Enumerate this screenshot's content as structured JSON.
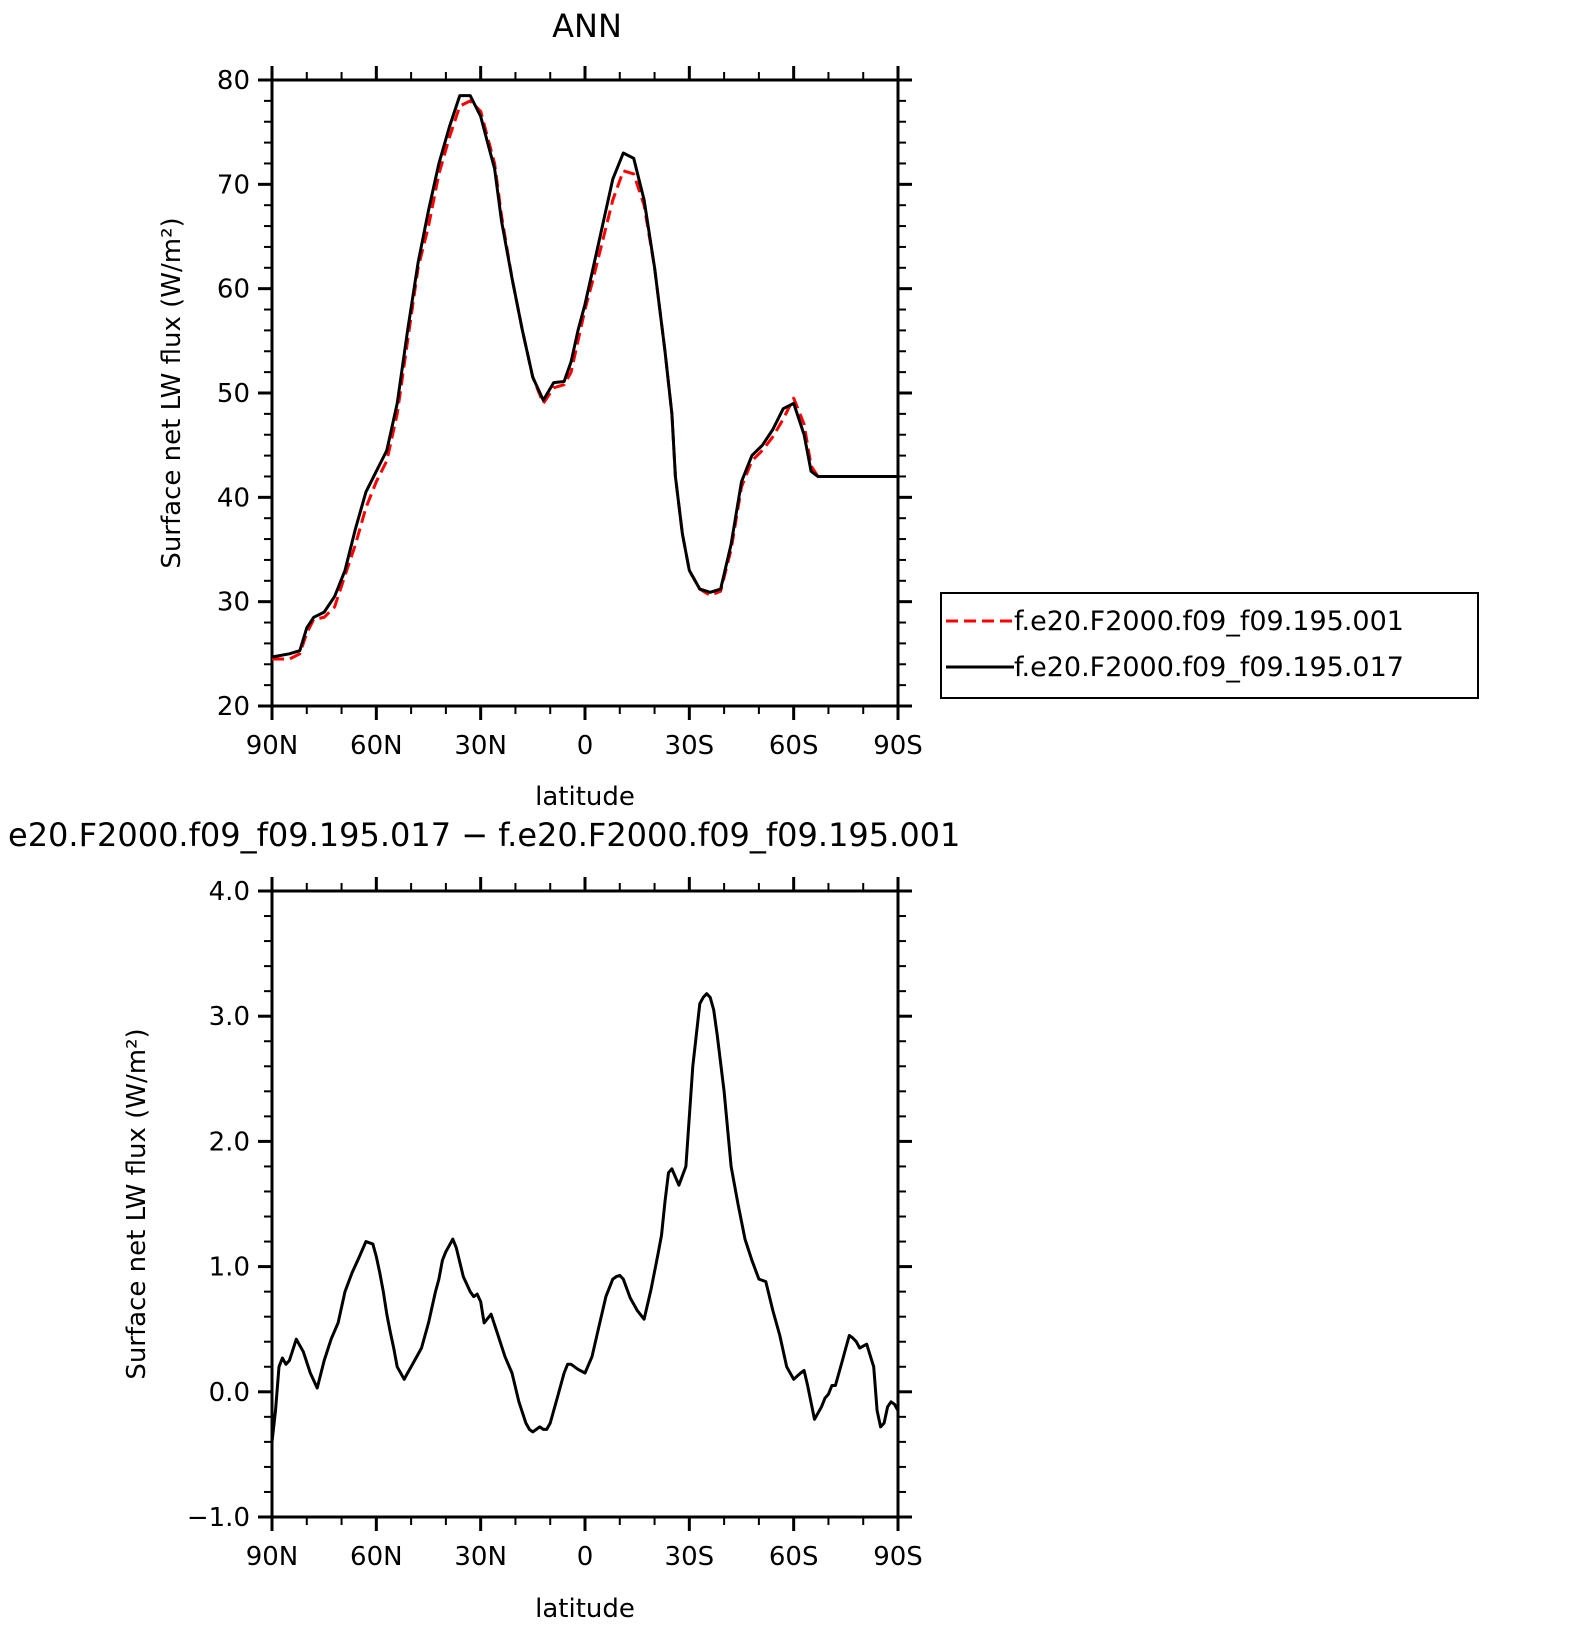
{
  "chart_data": [
    {
      "type": "line",
      "title": "ANN",
      "xlabel": "latitude",
      "ylabel": "Surface net LW flux (W/m²)",
      "xlim": [
        90,
        -90
      ],
      "ylim": [
        20,
        80
      ],
      "x_ticks": [
        90,
        60,
        30,
        0,
        -30,
        -60,
        -90
      ],
      "x_tick_labels": [
        "90N",
        "60N",
        "30N",
        "0",
        "30S",
        "60S",
        "90S"
      ],
      "y_ticks": [
        20,
        30,
        40,
        50,
        60,
        70,
        80
      ],
      "y_tick_labels": [
        "20",
        "30",
        "40",
        "50",
        "60",
        "70",
        "80"
      ],
      "legend_position": "right",
      "series": [
        {
          "name": "f.e20.F2000.f09_f09.195.001",
          "color": "#ff0000",
          "dash": "dashed",
          "x": [
            90,
            85,
            82,
            80,
            78,
            75,
            72,
            69,
            66,
            63,
            60,
            57,
            54,
            51,
            48,
            45,
            42,
            39,
            36,
            33,
            30,
            28,
            26,
            24,
            21,
            18,
            15,
            12,
            9,
            6,
            4,
            2,
            0,
            -2,
            -5,
            -8,
            -11,
            -14,
            -17,
            -20,
            -23,
            -25,
            -26,
            -28,
            -30,
            -33,
            -36,
            -39,
            -42,
            -45,
            -48,
            -51,
            -54,
            -57,
            -60,
            -63,
            -65,
            -67,
            -69,
            -71,
            -73,
            -75,
            -77,
            -79,
            -81,
            -83,
            -85,
            -87,
            -89,
            -90
          ],
          "y": [
            24.5,
            24.5,
            25,
            27,
            28.3,
            28.5,
            29.5,
            32.5,
            35.5,
            39,
            41.5,
            43.5,
            48,
            55,
            62,
            66,
            71,
            74.5,
            77.5,
            78,
            77,
            74.5,
            72,
            67,
            61,
            56,
            51.5,
            49,
            50.5,
            50.8,
            52,
            55,
            58,
            60.5,
            64.5,
            68.5,
            71.3,
            71,
            68,
            62,
            54,
            48,
            42,
            36.5,
            33,
            31.2,
            30.6,
            31,
            35,
            41,
            43.5,
            44.5,
            45.8,
            47.5,
            49.5,
            47,
            43,
            42,
            42,
            42,
            42,
            42,
            42,
            42,
            42,
            42,
            42,
            42,
            42,
            42
          ]
        },
        {
          "name": "f.e20.F2000.f09_f09.195.017",
          "color": "#000000",
          "dash": "solid",
          "x": [
            90,
            85,
            82,
            80,
            78,
            75,
            72,
            69,
            66,
            63,
            60,
            57,
            54,
            51,
            48,
            45,
            42,
            39,
            36,
            33,
            30,
            28,
            26,
            24,
            21,
            18,
            15,
            12,
            9,
            6,
            4,
            2,
            0,
            -2,
            -5,
            -8,
            -11,
            -14,
            -17,
            -20,
            -23,
            -25,
            -26,
            -28,
            -30,
            -33,
            -36,
            -39,
            -42,
            -45,
            -48,
            -51,
            -54,
            -57,
            -60,
            -63,
            -65,
            -67,
            -69,
            -71,
            -73,
            -75,
            -77,
            -79,
            -81,
            -83,
            -85,
            -87,
            -89,
            -90
          ],
          "y": [
            24.7,
            25,
            25.3,
            27.5,
            28.5,
            29,
            30.5,
            33,
            37,
            40.5,
            42.5,
            44.5,
            49,
            56,
            62.5,
            67.5,
            72,
            75.5,
            78.5,
            78.5,
            76.5,
            74,
            71.5,
            66.5,
            61,
            56,
            51.5,
            49.3,
            51,
            51.1,
            53,
            56,
            58.5,
            61.5,
            66,
            70.5,
            73,
            72.5,
            68.5,
            62,
            54,
            48,
            42,
            36.5,
            33,
            31.2,
            30.9,
            31.2,
            35.5,
            41.5,
            44,
            45,
            46.5,
            48.5,
            49,
            46,
            42.5,
            42,
            42,
            42,
            42,
            42,
            42,
            42,
            42,
            42,
            42,
            42,
            42,
            42
          ]
        }
      ]
    },
    {
      "type": "line",
      "title": "e20.F2000.f09_f09.195.017 − f.e20.F2000.f09_f09.195.001",
      "xlabel": "latitude",
      "ylabel": "Surface net LW flux (W/m²)",
      "xlim": [
        90,
        -90
      ],
      "ylim": [
        -1.0,
        4.0
      ],
      "x_ticks": [
        90,
        60,
        30,
        0,
        -30,
        -60,
        -90
      ],
      "x_tick_labels": [
        "90N",
        "60N",
        "30N",
        "0",
        "30S",
        "60S",
        "90S"
      ],
      "y_ticks": [
        -1.0,
        0.0,
        1.0,
        2.0,
        3.0,
        4.0
      ],
      "y_tick_labels": [
        "−1.0",
        "0.0",
        "1.0",
        "2.0",
        "3.0",
        "4.0"
      ],
      "series": [
        {
          "color": "#000000",
          "dash": "solid",
          "x": [
            90,
            89,
            88,
            87,
            86,
            85,
            83,
            81,
            79,
            77,
            75,
            73,
            71,
            69,
            67,
            65,
            63,
            61,
            60,
            59,
            58,
            57,
            56,
            55,
            54,
            52,
            51,
            50,
            49,
            48,
            47,
            45,
            43,
            42,
            41,
            40,
            39,
            38,
            37,
            35,
            33,
            32,
            31,
            30,
            29,
            27,
            25,
            23,
            21,
            19,
            17,
            16,
            15,
            14,
            13,
            12,
            11,
            10,
            8,
            6,
            5,
            4,
            2,
            0,
            -2,
            -4,
            -6,
            -8,
            -9,
            -10,
            -11,
            -13,
            -15,
            -17,
            -19,
            -21,
            -22,
            -23,
            -24,
            -25,
            -27,
            -29,
            -31,
            -33,
            -34,
            -35,
            -36,
            -37,
            -38,
            -40,
            -42,
            -44,
            -46,
            -48,
            -50,
            -52,
            -54,
            -56,
            -58,
            -60,
            -62,
            -63,
            -64,
            -66,
            -68,
            -69,
            -70,
            -71,
            -72,
            -74,
            -75,
            -76,
            -77,
            -78,
            -79,
            -81,
            -83,
            -84,
            -85,
            -86,
            -87,
            -88,
            -89,
            -90
          ],
          "y": [
            -0.4,
            -0.15,
            0.2,
            0.27,
            0.22,
            0.25,
            0.42,
            0.32,
            0.15,
            0.03,
            0.25,
            0.42,
            0.55,
            0.8,
            0.95,
            1.07,
            1.2,
            1.18,
            1.08,
            0.95,
            0.8,
            0.62,
            0.48,
            0.35,
            0.2,
            0.1,
            0.15,
            0.2,
            0.25,
            0.3,
            0.35,
            0.55,
            0.8,
            0.9,
            1.05,
            1.12,
            1.17,
            1.22,
            1.15,
            0.92,
            0.8,
            0.76,
            0.78,
            0.72,
            0.55,
            0.62,
            0.45,
            0.28,
            0.15,
            -0.08,
            -0.25,
            -0.3,
            -0.32,
            -0.3,
            -0.28,
            -0.3,
            -0.3,
            -0.25,
            -0.05,
            0.15,
            0.22,
            0.22,
            0.18,
            0.15,
            0.28,
            0.52,
            0.76,
            0.9,
            0.92,
            0.93,
            0.9,
            0.75,
            0.65,
            0.58,
            0.82,
            1.1,
            1.25,
            1.52,
            1.75,
            1.78,
            1.65,
            1.8,
            2.6,
            3.1,
            3.15,
            3.18,
            3.15,
            3.05,
            2.85,
            2.4,
            1.8,
            1.5,
            1.22,
            1.05,
            0.9,
            0.88,
            0.65,
            0.45,
            0.2,
            0.1,
            0.15,
            0.17,
            0.05,
            -0.22,
            -0.12,
            -0.05,
            -0.02,
            0.05,
            0.05,
            0.25,
            0.35,
            0.45,
            0.43,
            0.4,
            0.35,
            0.38,
            0.2,
            -0.15,
            -0.28,
            -0.25,
            -0.12,
            -0.08,
            -0.1,
            -0.15
          ]
        }
      ]
    }
  ]
}
